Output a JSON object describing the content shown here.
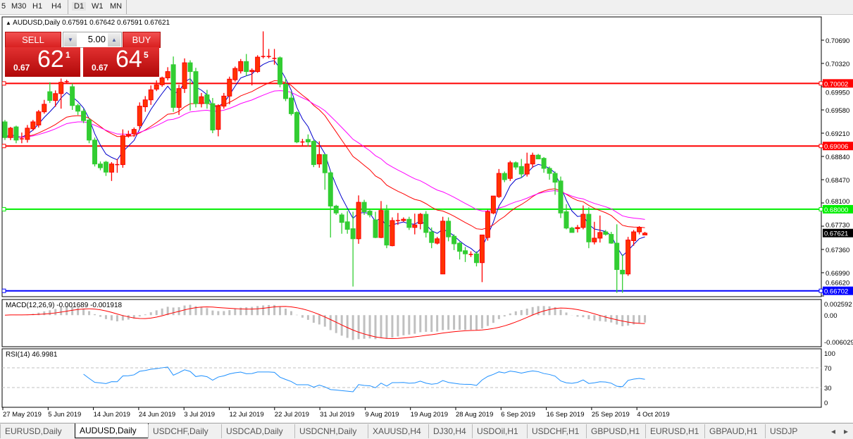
{
  "toolbar": {
    "timeframes": [
      "5",
      "M30",
      "H1",
      "H4",
      "D1",
      "W1",
      "MN"
    ],
    "active": "D1"
  },
  "title": {
    "arrow": "▲",
    "symbol": "AUDUSD,Daily",
    "ohlc": "0.67591 0.67642 0.67591 0.67621"
  },
  "trade": {
    "sell_label": "SELL",
    "buy_label": "BUY",
    "lot": "5.00",
    "sell_prefix": "0.67",
    "sell_big": "62",
    "sell_sup": "1",
    "buy_prefix": "0.67",
    "buy_big": "64",
    "buy_sup": "5",
    "down_arrow": "▼",
    "up_arrow": "▲"
  },
  "indicators": {
    "macd_label": "MACD(12,26,9) -0.001689 -0.001918",
    "rsi_label": "RSI(14) 46.9981"
  },
  "tabs": [
    "EURUSD,Daily",
    "AUDUSD,Daily",
    "USDCHF,Daily",
    "USDCAD,Daily",
    "USDCNH,Daily",
    "XAUUSD,H4",
    "DJ30,H4",
    "USDOil,H1",
    "USDCHF,H1",
    "GBPUSD,H1",
    "EURUSD,H1",
    "GBPAUD,H1",
    "USDJP"
  ],
  "active_tab": "AUDUSD,Daily",
  "tab_scroll": {
    "left": "◂",
    "right": "▸"
  },
  "colors": {
    "up": "#ff3300",
    "down": "#32cd32",
    "ma_fast": "#0000cc",
    "ma_mid": "#ff0000",
    "ma_slow": "#ff00ff",
    "macd_hist": "#c0c0c0",
    "macd_signal": "#ff0000",
    "rsi": "#1e90ff"
  },
  "chart_data": {
    "type": "candlestick",
    "symbol": "AUDUSD",
    "timeframe": "Daily",
    "price_ticks": [
      "0.70690",
      "0.70320",
      "0.69950",
      "0.69580",
      "0.69210",
      "0.68840",
      "0.68470",
      "0.68100",
      "0.67730",
      "0.67360",
      "0.66990",
      "0.66620"
    ],
    "ylim": [
      0.6662,
      0.7104
    ],
    "x_tick_labels": [
      "27 May 2019",
      "5 Jun 2019",
      "14 Jun 2019",
      "24 Jun 2019",
      "3 Jul 2019",
      "12 Jul 2019",
      "22 Jul 2019",
      "31 Jul 2019",
      "9 Aug 2019",
      "19 Aug 2019",
      "28 Aug 2019",
      "6 Sep 2019",
      "16 Sep 2019",
      "25 Sep 2019",
      "4 Oct 2019"
    ],
    "current_price": "0.67621",
    "hlines": [
      {
        "price": "0.70002",
        "color": "#ff0000"
      },
      {
        "price": "0.69006",
        "color": "#ff0000"
      },
      {
        "price": "0.68000",
        "color": "#00ee00"
      },
      {
        "price": "0.66702",
        "color": "#0000ff"
      }
    ],
    "ohlc": [
      [
        0.6939,
        0.6942,
        0.691,
        0.6914
      ],
      [
        0.6914,
        0.6931,
        0.691,
        0.6929
      ],
      [
        0.6931,
        0.6933,
        0.6905,
        0.691
      ],
      [
        0.6912,
        0.6922,
        0.6905,
        0.6912
      ],
      [
        0.6911,
        0.6934,
        0.6906,
        0.6929
      ],
      [
        0.6928,
        0.6942,
        0.6925,
        0.6939
      ],
      [
        0.6934,
        0.6958,
        0.693,
        0.6955
      ],
      [
        0.6955,
        0.6974,
        0.6952,
        0.6967
      ],
      [
        0.6987,
        0.7002,
        0.6969,
        0.6973
      ],
      [
        0.6973,
        0.6989,
        0.6963,
        0.6984
      ],
      [
        0.6984,
        0.7008,
        0.696,
        0.7002
      ],
      [
        0.7003,
        0.7006,
        0.7,
        0.7003
      ],
      [
        0.6995,
        0.7,
        0.6958,
        0.6965
      ],
      [
        0.6965,
        0.6968,
        0.695,
        0.6956
      ],
      [
        0.6956,
        0.696,
        0.6937,
        0.6941
      ],
      [
        0.6942,
        0.6945,
        0.6905,
        0.691
      ],
      [
        0.691,
        0.6914,
        0.6868,
        0.6872
      ],
      [
        0.6872,
        0.6876,
        0.6862,
        0.6866
      ],
      [
        0.6875,
        0.6877,
        0.6853,
        0.6859
      ],
      [
        0.6859,
        0.6875,
        0.6845,
        0.6872
      ],
      [
        0.6871,
        0.688,
        0.6858,
        0.6871
      ],
      [
        0.6871,
        0.6927,
        0.6866,
        0.6917
      ],
      [
        0.6917,
        0.6925,
        0.6914,
        0.6919
      ],
      [
        0.692,
        0.693,
        0.6915,
        0.6927
      ],
      [
        0.6933,
        0.697,
        0.6927,
        0.6964
      ],
      [
        0.6963,
        0.698,
        0.6955,
        0.6974
      ],
      [
        0.6974,
        0.6997,
        0.6966,
        0.699
      ],
      [
        0.6991,
        0.7005,
        0.6988,
        0.6998
      ],
      [
        0.6998,
        0.7011,
        0.6995,
        0.7009
      ],
      [
        0.7009,
        0.7026,
        0.7005,
        0.7019
      ],
      [
        0.703,
        0.7043,
        0.6955,
        0.6962
      ],
      [
        0.6962,
        0.6998,
        0.695,
        0.6992
      ],
      [
        0.6992,
        0.704,
        0.6985,
        0.7033
      ],
      [
        0.7033,
        0.7037,
        0.6957,
        0.7019
      ],
      [
        0.7019,
        0.7025,
        0.6962,
        0.6968
      ],
      [
        0.6968,
        0.6985,
        0.6962,
        0.6979
      ],
      [
        0.6982,
        0.699,
        0.696,
        0.6968
      ],
      [
        0.6968,
        0.6977,
        0.6921,
        0.6926
      ],
      [
        0.6927,
        0.6967,
        0.6916,
        0.6964
      ],
      [
        0.6964,
        0.6985,
        0.696,
        0.698
      ],
      [
        0.698,
        0.7011,
        0.6967,
        0.7007
      ],
      [
        0.7006,
        0.7027,
        0.7003,
        0.7024
      ],
      [
        0.702,
        0.7039,
        0.7016,
        0.7035
      ],
      [
        0.7035,
        0.7047,
        0.7012,
        0.7019
      ],
      [
        0.7019,
        0.7024,
        0.6997,
        0.7021
      ],
      [
        0.7019,
        0.7045,
        0.7017,
        0.7042
      ],
      [
        0.7043,
        0.7083,
        0.704,
        0.7043
      ],
      [
        0.7043,
        0.7055,
        0.704,
        0.7043
      ],
      [
        0.704,
        0.7055,
        0.703,
        0.704
      ],
      [
        0.7041,
        0.7043,
        0.6994,
        0.6999
      ],
      [
        0.6999,
        0.7009,
        0.6972,
        0.6976
      ],
      [
        0.6977,
        0.6987,
        0.6949,
        0.6952
      ],
      [
        0.6954,
        0.6956,
        0.6905,
        0.6907
      ],
      [
        0.6907,
        0.6912,
        0.69,
        0.6907
      ],
      [
        0.6911,
        0.6919,
        0.69,
        0.6907
      ],
      [
        0.6908,
        0.691,
        0.6867,
        0.6871
      ],
      [
        0.6872,
        0.6908,
        0.6866,
        0.6887
      ],
      [
        0.6887,
        0.6887,
        0.6831,
        0.6858
      ],
      [
        0.6858,
        0.6861,
        0.6755,
        0.6805
      ],
      [
        0.6805,
        0.6807,
        0.6791,
        0.6794
      ],
      [
        0.6791,
        0.6794,
        0.6761,
        0.6779
      ],
      [
        0.678,
        0.6797,
        0.6761,
        0.6768
      ],
      [
        0.6769,
        0.6796,
        0.6677,
        0.6753
      ],
      [
        0.6753,
        0.6822,
        0.6745,
        0.6811
      ],
      [
        0.6811,
        0.6815,
        0.6791,
        0.6796
      ],
      [
        0.6797,
        0.68,
        0.6787,
        0.6791
      ],
      [
        0.6783,
        0.6796,
        0.6754,
        0.6755
      ],
      [
        0.6755,
        0.6813,
        0.6754,
        0.6798
      ],
      [
        0.6798,
        0.6807,
        0.6738,
        0.6743
      ],
      [
        0.6742,
        0.6787,
        0.6741,
        0.6782
      ],
      [
        0.6782,
        0.6794,
        0.6775,
        0.6782
      ],
      [
        0.6782,
        0.6787,
        0.678,
        0.6784
      ],
      [
        0.6784,
        0.6788,
        0.6767,
        0.6771
      ],
      [
        0.6771,
        0.6793,
        0.676,
        0.6775
      ],
      [
        0.6777,
        0.6794,
        0.6768,
        0.6792
      ],
      [
        0.6792,
        0.6797,
        0.6755,
        0.6763
      ],
      [
        0.6764,
        0.6771,
        0.6738,
        0.6747
      ],
      [
        0.6746,
        0.6756,
        0.6744,
        0.6753
      ],
      [
        0.6697,
        0.6788,
        0.6697,
        0.6781
      ],
      [
        0.6781,
        0.6787,
        0.6749,
        0.6756
      ],
      [
        0.6757,
        0.676,
        0.6735,
        0.6745
      ],
      [
        0.6746,
        0.6748,
        0.672,
        0.6733
      ],
      [
        0.6734,
        0.674,
        0.6716,
        0.6729
      ],
      [
        0.6728,
        0.6733,
        0.6724,
        0.6728
      ],
      [
        0.6729,
        0.6733,
        0.6709,
        0.6715
      ],
      [
        0.6715,
        0.6759,
        0.6684,
        0.6759
      ],
      [
        0.6755,
        0.6799,
        0.675,
        0.6796
      ],
      [
        0.6794,
        0.6821,
        0.6792,
        0.6821
      ],
      [
        0.682,
        0.6864,
        0.6818,
        0.6857
      ],
      [
        0.6857,
        0.686,
        0.6843,
        0.6847
      ],
      [
        0.6849,
        0.6877,
        0.6845,
        0.6874
      ],
      [
        0.6874,
        0.6876,
        0.6863,
        0.6867
      ],
      [
        0.6868,
        0.688,
        0.685,
        0.6856
      ],
      [
        0.6856,
        0.689,
        0.6852,
        0.6872
      ],
      [
        0.6872,
        0.689,
        0.6866,
        0.6886
      ],
      [
        0.6886,
        0.6888,
        0.688,
        0.688
      ],
      [
        0.6881,
        0.6883,
        0.6858,
        0.6865
      ],
      [
        0.6865,
        0.6868,
        0.6847,
        0.6857
      ],
      [
        0.6857,
        0.686,
        0.6823,
        0.6843
      ],
      [
        0.6845,
        0.6852,
        0.6786,
        0.6794
      ],
      [
        0.6796,
        0.6808,
        0.6768,
        0.677
      ],
      [
        0.677,
        0.6772,
        0.6763,
        0.6763
      ],
      [
        0.6769,
        0.6775,
        0.6763,
        0.6771
      ],
      [
        0.6771,
        0.6806,
        0.6768,
        0.6792
      ],
      [
        0.6792,
        0.6803,
        0.6738,
        0.6748
      ],
      [
        0.6748,
        0.678,
        0.6744,
        0.6754
      ],
      [
        0.6754,
        0.679,
        0.6747,
        0.6763
      ],
      [
        0.6764,
        0.6767,
        0.6758,
        0.676
      ],
      [
        0.676,
        0.6764,
        0.6745,
        0.6746
      ],
      [
        0.6746,
        0.6776,
        0.6667,
        0.6704
      ],
      [
        0.6703,
        0.6728,
        0.6667,
        0.6697
      ],
      [
        0.6697,
        0.6756,
        0.6694,
        0.6751
      ],
      [
        0.675,
        0.6767,
        0.6742,
        0.6764
      ],
      [
        0.6764,
        0.6773,
        0.676,
        0.6771
      ],
      [
        0.6759,
        0.6764,
        0.6759,
        0.6762
      ]
    ],
    "macd": {
      "params": "12,26,9",
      "value": "-0.001689",
      "signal": "-0.001918",
      "ticks": [
        "0.002592",
        "0.00",
        "-0.006029"
      ],
      "ylim": [
        -0.006029,
        0.002592
      ]
    },
    "rsi": {
      "period": 14,
      "value": "46.9981",
      "ticks": [
        "100",
        "70",
        "30",
        "0"
      ],
      "levels": [
        70,
        30
      ]
    }
  }
}
